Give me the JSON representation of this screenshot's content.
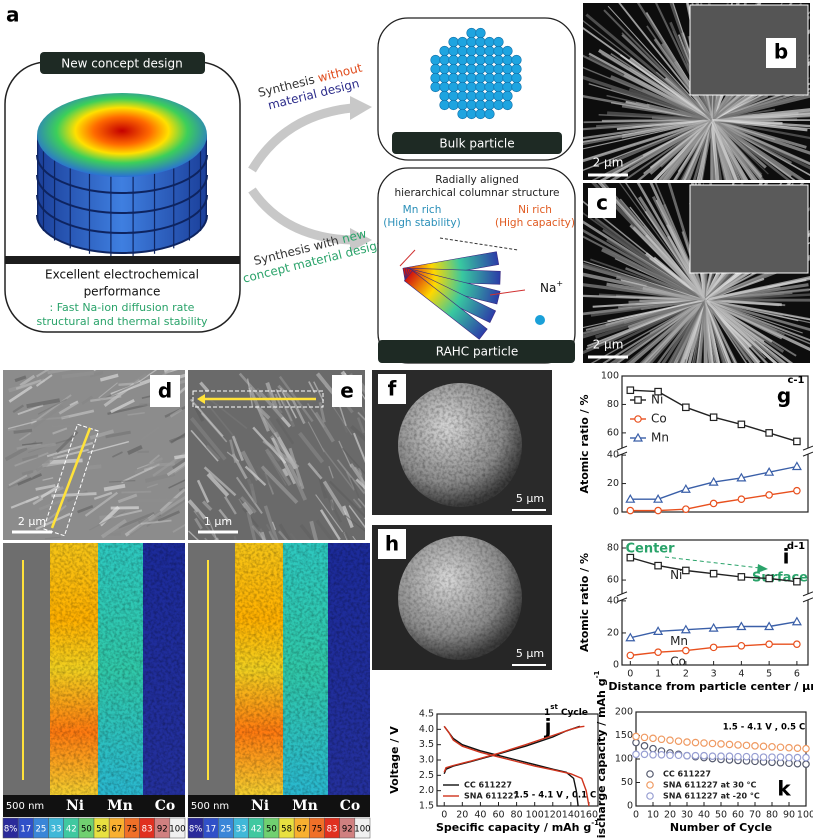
{
  "panel_labels": [
    "a",
    "b",
    "c",
    "d",
    "e",
    "f",
    "h"
  ],
  "schematic": {
    "new_concept": "New concept design",
    "performance": [
      "Excellent electrochemical",
      "performance"
    ],
    "features": [
      ": Fast Na-ion diffusion rate",
      "structural and thermal stability"
    ],
    "route_without": {
      "line1": [
        "Synthesis ",
        "without"
      ],
      "line2": "material design"
    },
    "route_with": {
      "line1": [
        "Synthesis with ",
        "new"
      ],
      "line2": "concept material design"
    },
    "bulk": "Bulk particle",
    "rahc_title": [
      "Radially aligned",
      "hierarchical columnar structure"
    ],
    "mn_rich": [
      "Mn rich",
      "(High stability)"
    ],
    "ni_rich": [
      "Ni rich",
      "(High capacity)"
    ],
    "ion": [
      "Na",
      "+"
    ],
    "rahc": "RAHC particle"
  },
  "scale_bars": {
    "b": "2 μm",
    "c": "2 μm",
    "d": "2 μm",
    "e": "1 μm",
    "d_map": "500 nm",
    "e_map": "500 nm",
    "f": "5 μm",
    "h": "5 μm"
  },
  "elements": [
    "Ni",
    "Mn",
    "Co"
  ],
  "colorbar": [
    "8%",
    "17",
    "25",
    "33",
    "42",
    "50",
    "58",
    "67",
    "75",
    "83",
    "92",
    "100"
  ],
  "chart_data": [
    {
      "type": "line",
      "panel_label": "g",
      "tag": "c-1",
      "ylabel": "Atomic ratio / %",
      "x": [
        0,
        1,
        2,
        3,
        4,
        5,
        6
      ],
      "xlim": [
        -0.3,
        6.4
      ],
      "ylim": [
        0,
        100
      ],
      "y_break": [
        40,
        50
      ],
      "yticks": [
        0,
        20,
        40,
        60,
        80,
        100
      ],
      "legend": "upper-left",
      "lines": true,
      "series": [
        {
          "name": "Ni",
          "color": "#222222",
          "marker": "square",
          "values": [
            90,
            89,
            78,
            71,
            66,
            60,
            54
          ]
        },
        {
          "name": "Co",
          "color": "#e8501e",
          "marker": "circle",
          "values": [
            1,
            1,
            2,
            6,
            9,
            12,
            15
          ]
        },
        {
          "name": "Mn",
          "color": "#3a5fa8",
          "marker": "triangle",
          "values": [
            9,
            9,
            16,
            21,
            24,
            28,
            32
          ]
        }
      ]
    },
    {
      "type": "line",
      "panel_label": "i",
      "tag": "d-1",
      "ylabel": "Atomic ratio / %",
      "xlabel": "Distance from particle center / μm",
      "annotations": [
        "Center",
        "Surface"
      ],
      "x": [
        0,
        1,
        2,
        3,
        4,
        5,
        6
      ],
      "xlim": [
        -0.3,
        6.4
      ],
      "xticks": [
        0,
        1,
        2,
        3,
        4,
        5,
        6
      ],
      "ylim": [
        0,
        85
      ],
      "y_break": [
        40,
        52
      ],
      "yticks": [
        0,
        20,
        40,
        60,
        80
      ],
      "legend": "inline",
      "lines": true,
      "series": [
        {
          "name": "Ni",
          "color": "#222222",
          "marker": "square",
          "values": [
            74,
            69,
            66,
            64,
            62,
            61,
            59
          ]
        },
        {
          "name": "Co",
          "color": "#e8501e",
          "marker": "circle",
          "values": [
            6,
            8,
            9,
            11,
            12,
            13,
            13
          ]
        },
        {
          "name": "Mn",
          "color": "#3a5fa8",
          "marker": "triangle",
          "values": [
            17,
            21,
            22,
            23,
            24,
            24,
            27
          ]
        }
      ]
    },
    {
      "type": "line",
      "panel_label": "j",
      "ylabel": "Voltage / V",
      "xlabel": [
        "Specific capacity / mAh g",
        "-1"
      ],
      "cycle_note": [
        "1",
        "st",
        " Cycle"
      ],
      "condition": "1.5 - 4.1 V , 0.1 C",
      "xlim": [
        -8,
        170
      ],
      "xticks": [
        0,
        20,
        40,
        60,
        80,
        100,
        120,
        140,
        160
      ],
      "ylim": [
        1.5,
        4.5
      ],
      "yticks": [
        1.5,
        {
          "value": 2,
          "label": "2.0"
        },
        2.5,
        {
          "value": 3,
          "label": "3.0"
        },
        3.5,
        {
          "value": 4,
          "label": "4.0"
        },
        4.5
      ],
      "legend": "lower-left",
      "lines": true,
      "series": [
        {
          "name": "CC 611227",
          "color": "#111111",
          "marker": null,
          "x": [
            0,
            2,
            10,
            30,
            60,
            90,
            120,
            135,
            145,
            150,
            null,
            0,
            5,
            10,
            20,
            40,
            60,
            80,
            100,
            120,
            135,
            143,
            146,
            148
          ],
          "values": [
            2.55,
            2.7,
            2.8,
            2.95,
            3.2,
            3.45,
            3.75,
            3.95,
            4.05,
            4.1,
            null,
            4.1,
            3.9,
            3.7,
            3.5,
            3.3,
            3.15,
            3.0,
            2.85,
            2.7,
            2.6,
            2.4,
            2.0,
            1.5
          ]
        },
        {
          "name": "SNA 611227",
          "color": "#d0331c",
          "marker": null,
          "x": [
            0,
            2,
            10,
            30,
            60,
            90,
            120,
            140,
            150,
            155,
            null,
            0,
            5,
            10,
            20,
            40,
            60,
            80,
            100,
            120,
            140,
            152,
            157,
            160
          ],
          "values": [
            2.6,
            2.75,
            2.82,
            2.97,
            3.22,
            3.5,
            3.8,
            4.0,
            4.08,
            4.1,
            null,
            4.1,
            3.9,
            3.65,
            3.45,
            3.25,
            3.1,
            2.95,
            2.8,
            2.68,
            2.55,
            2.4,
            2.0,
            1.5
          ]
        }
      ]
    },
    {
      "type": "line",
      "panel_label": "k",
      "ylabel": [
        "Discharge capacity / mAh g",
        "-1"
      ],
      "xlabel": "Number of Cycle",
      "condition": "1.5 - 4.1 V , 0.5 C",
      "x": [
        0,
        5,
        10,
        15,
        20,
        25,
        30,
        35,
        40,
        45,
        50,
        55,
        60,
        65,
        70,
        75,
        80,
        85,
        90,
        95,
        100
      ],
      "xlim": [
        0,
        100
      ],
      "xticks": [
        0,
        10,
        20,
        30,
        40,
        50,
        60,
        70,
        80,
        90,
        100
      ],
      "ylim": [
        0,
        200
      ],
      "yticks": [
        0,
        50,
        100,
        150,
        200
      ],
      "legend": "lower-left",
      "lines": false,
      "series": [
        {
          "name": "CC 611227",
          "color": "#555a6e",
          "marker": "circle",
          "values": [
            135,
            128,
            122,
            117,
            113,
            110,
            107,
            105,
            103,
            101,
            99,
            98,
            97,
            96,
            95,
            94,
            93,
            92,
            91,
            90,
            89
          ]
        },
        {
          "name": "SNA  611227 at 30 °C",
          "color": "#ef9a62",
          "marker": "circle",
          "values": [
            148,
            146,
            144,
            142,
            140,
            138,
            136,
            135,
            134,
            133,
            132,
            131,
            130,
            129,
            128,
            127,
            126,
            125,
            124,
            123,
            122
          ]
        },
        {
          "name": "SNA  611227 at -20 °C",
          "color": "#979ed2",
          "marker": "circle",
          "values": [
            110,
            110,
            109,
            109,
            108,
            108,
            107,
            107,
            107,
            106,
            106,
            106,
            105,
            105,
            105,
            104,
            104,
            104,
            103,
            103,
            103
          ]
        }
      ]
    }
  ]
}
